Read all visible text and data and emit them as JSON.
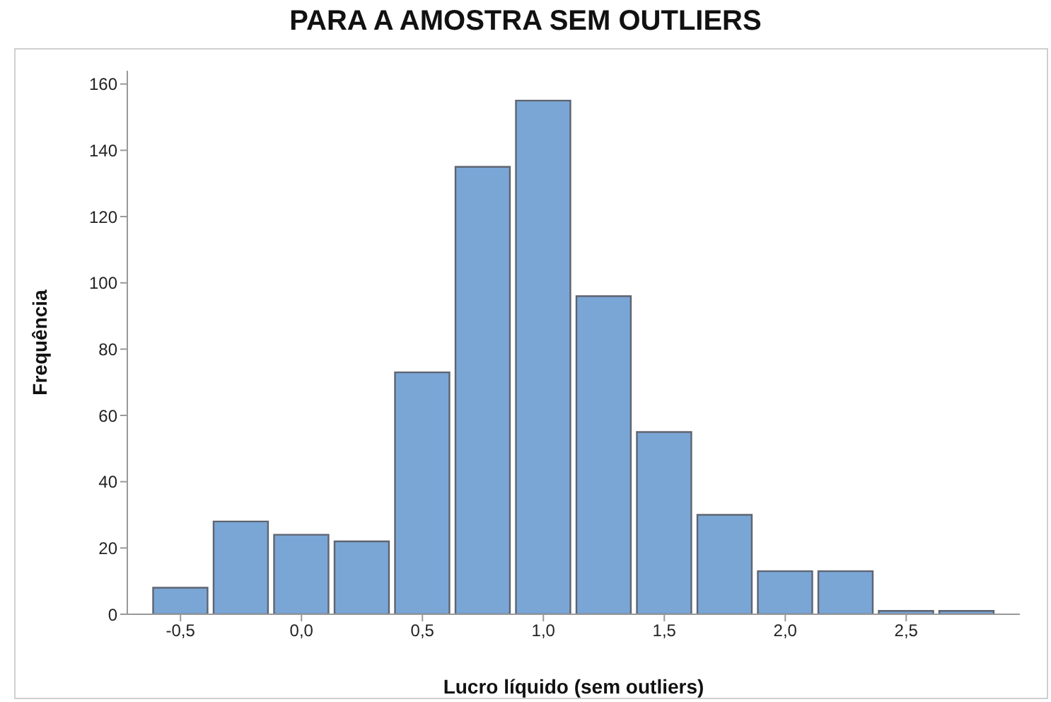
{
  "chart_data": {
    "type": "histogram",
    "title": "PARA A AMOSTRA SEM OUTLIERS",
    "xlabel": "Lucro líquido (sem outliers)",
    "ylabel": "Frequência",
    "bins": [
      -0.625,
      -0.375,
      -0.125,
      0.125,
      0.375,
      0.625,
      0.875,
      1.125,
      1.375,
      1.625,
      1.875,
      2.125,
      2.375,
      2.625,
      2.875
    ],
    "values": [
      8,
      28,
      24,
      22,
      73,
      135,
      155,
      96,
      55,
      30,
      13,
      13,
      1,
      1
    ],
    "color": "#7aa6d6",
    "xlim": [
      -0.72,
      2.97
    ],
    "xticks": [
      {
        "value": -0.5,
        "label": "-0,5"
      },
      {
        "value": 0,
        "label": "0,0"
      },
      {
        "value": 0.5,
        "label": "0,5"
      },
      {
        "value": 1,
        "label": "1,0"
      },
      {
        "value": 1.5,
        "label": "1,5"
      },
      {
        "value": 2,
        "label": "2,0"
      },
      {
        "value": 2.5,
        "label": "2,5"
      }
    ],
    "ylim": [
      0,
      164
    ],
    "yticks": [
      0,
      20,
      40,
      60,
      80,
      100,
      120,
      140,
      160
    ]
  }
}
